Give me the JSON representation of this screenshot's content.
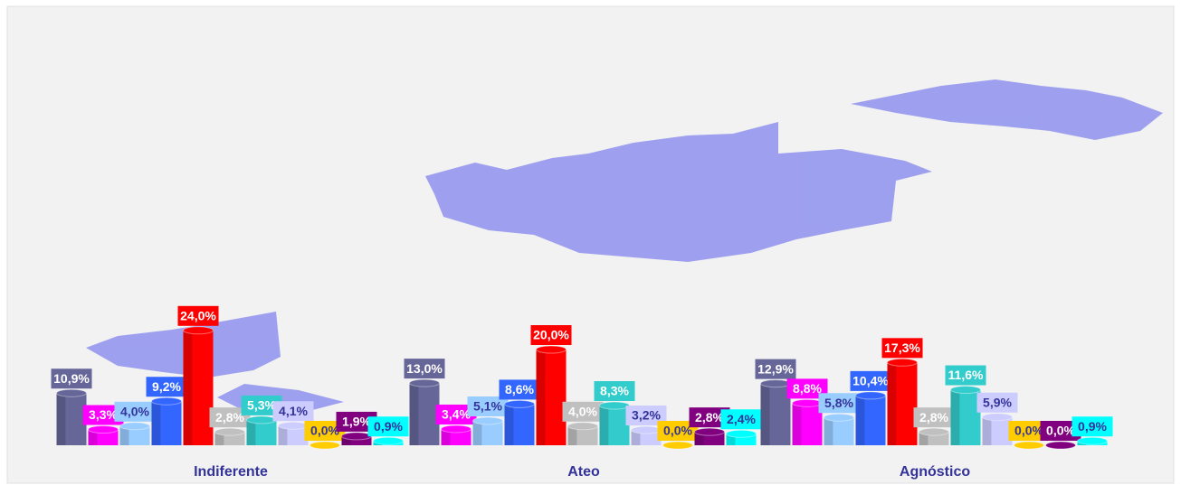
{
  "chart_data": {
    "type": "bar",
    "categories": [
      "Indiferente",
      "Ateo",
      "Agnóstico"
    ],
    "series": [
      {
        "color": "#666699",
        "label_color": "#ffffff",
        "values": [
          10.9,
          13.0,
          12.9
        ],
        "value_labels": [
          "10,9%",
          "13,0%",
          "12,9%"
        ]
      },
      {
        "color": "#ff00ff",
        "label_color": "#ffffff",
        "values": [
          3.3,
          3.4,
          8.8
        ],
        "value_labels": [
          "3,3%",
          "3,4%",
          "8,8%"
        ]
      },
      {
        "color": "#99ccff",
        "label_color": "#333399",
        "values": [
          4.0,
          5.1,
          5.8
        ],
        "value_labels": [
          "4,0%",
          "5,1%",
          "5,8%"
        ]
      },
      {
        "color": "#3366ff",
        "label_color": "#ffffff",
        "values": [
          9.2,
          8.6,
          10.4
        ],
        "value_labels": [
          "9,2%",
          "8,6%",
          "10,4%"
        ]
      },
      {
        "color": "#ff0000",
        "label_color": "#ffffff",
        "values": [
          24.0,
          20.0,
          17.3
        ],
        "value_labels": [
          "24,0%",
          "20,0%",
          "17,3%"
        ]
      },
      {
        "color": "#c0c0c0",
        "label_color": "#ffffff",
        "values": [
          2.8,
          4.0,
          2.8
        ],
        "value_labels": [
          "2,8%",
          "4,0%",
          "2,8%"
        ]
      },
      {
        "color": "#33cccc",
        "label_color": "#ffffff",
        "values": [
          5.3,
          8.3,
          11.6
        ],
        "value_labels": [
          "5,3%",
          "8,3%",
          "11,6%"
        ]
      },
      {
        "color": "#ccccff",
        "label_color": "#333399",
        "values": [
          4.1,
          3.2,
          5.9
        ],
        "value_labels": [
          "4,1%",
          "3,2%",
          "5,9%"
        ]
      },
      {
        "color": "#ffcc00",
        "label_color": "#333399",
        "values": [
          0.0,
          0.0,
          0.0
        ],
        "value_labels": [
          "0,0%",
          "0,0%",
          "0,0%"
        ]
      },
      {
        "color": "#800080",
        "label_color": "#ffffff",
        "values": [
          1.9,
          2.8,
          0.0
        ],
        "value_labels": [
          "1,9%",
          "2,8%",
          "0,0%"
        ]
      },
      {
        "color": "#00ffff",
        "label_color": "#333399",
        "values": [
          0.9,
          2.4,
          0.9
        ],
        "value_labels": [
          "0,9%",
          "2,4%",
          "0,9%"
        ]
      }
    ]
  }
}
